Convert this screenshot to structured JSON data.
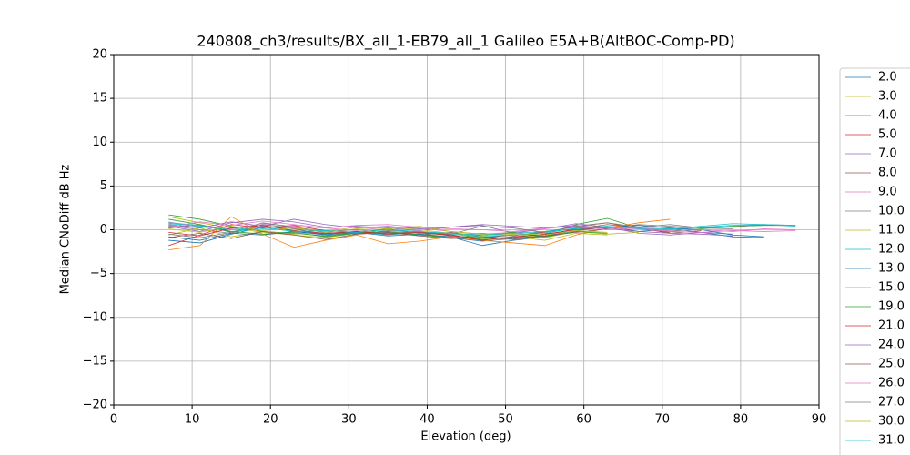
{
  "chart_data": {
    "type": "line",
    "title": "240808_ch3/results/BX_all_1-EB79_all_1 Galileo E5A+B(AltBOC-Comp-PD)",
    "xlabel": "Elevation (deg)",
    "ylabel": "Median CNoDiff dB Hz",
    "xlim": [
      0,
      90
    ],
    "xticks": [
      0,
      10,
      20,
      30,
      40,
      50,
      60,
      70,
      80,
      90
    ],
    "ylim": [
      -20,
      20
    ],
    "yticks": [
      {
        "value": -20,
        "label": "−20"
      },
      {
        "value": -15,
        "label": "−15"
      },
      {
        "value": -10,
        "label": "−10"
      },
      {
        "value": -5,
        "label": "−5"
      },
      0,
      5,
      10,
      15,
      20
    ],
    "grid": true,
    "legend": "right",
    "x": [
      7,
      11,
      15,
      19,
      23,
      27,
      31,
      35,
      39,
      43,
      47,
      51,
      55,
      59,
      63,
      67,
      71,
      75,
      79,
      83,
      87
    ],
    "series": [
      {
        "name": "2.0",
        "color": "#1f77b4",
        "values": [
          -1.2,
          -1.5,
          -0.5,
          0.3,
          -0.2,
          -0.6,
          -0.4,
          -0.3,
          -0.5,
          -0.8,
          -1.8,
          -1.2,
          -0.8,
          0.2,
          0.4,
          -0.2,
          0.1,
          -0.3,
          -0.8,
          -0.9,
          null
        ]
      },
      {
        "name": "3.0",
        "color": "#bcbd22",
        "values": [
          1.5,
          0.8,
          0.2,
          -0.3,
          -0.6,
          -0.9,
          -0.4,
          -0.2,
          -0.5,
          -0.9,
          -1.0,
          -0.8,
          -1.2,
          -0.4,
          -0.6,
          null,
          null,
          null,
          null,
          null,
          null
        ]
      },
      {
        "name": "4.0",
        "color": "#2ca02c",
        "values": [
          1.7,
          1.2,
          0.4,
          -0.2,
          -0.4,
          -0.7,
          -0.3,
          0.1,
          -0.4,
          -0.6,
          -1.1,
          -0.9,
          -0.5,
          0.6,
          1.3,
          0.2,
          -0.2,
          0.1,
          0.4,
          0.5,
          0.5
        ]
      },
      {
        "name": "5.0",
        "color": "#d62728",
        "values": [
          -1.8,
          -0.6,
          0.6,
          0.2,
          0.5,
          -0.1,
          -0.3,
          -0.5,
          -0.2,
          -0.7,
          -0.9,
          -0.6,
          -0.3,
          0.4,
          0.8,
          0.1,
          -0.3,
          null,
          null,
          null,
          null
        ]
      },
      {
        "name": "7.0",
        "color": "#9467bd",
        "values": [
          0.4,
          -0.2,
          0.8,
          1.2,
          0.9,
          0.3,
          0.4,
          0.2,
          -0.1,
          0.3,
          0.5,
          -0.4,
          0.1,
          0.7,
          0.3,
          -0.4,
          -0.6,
          -0.3,
          -0.5,
          null,
          null
        ]
      },
      {
        "name": "8.0",
        "color": "#8c564b",
        "values": [
          0.2,
          0.6,
          -0.3,
          0.4,
          0.1,
          -0.5,
          -0.2,
          -0.4,
          -0.6,
          -0.3,
          -0.8,
          -1.0,
          -0.6,
          0.1,
          0.6,
          0.2,
          -0.4,
          -0.1,
          null,
          null,
          null
        ]
      },
      {
        "name": "9.0",
        "color": "#e377c2",
        "values": [
          0.9,
          0.3,
          0.1,
          0.7,
          0.4,
          0.2,
          -0.1,
          0.3,
          0.2,
          -0.2,
          -0.5,
          -0.3,
          0.1,
          0.5,
          0.2,
          0.1,
          -0.2,
          -0.3,
          -0.1,
          -0.2,
          -0.1
        ]
      },
      {
        "name": "10.0",
        "color": "#7f7f7f",
        "values": [
          0.5,
          0.0,
          -0.4,
          0.6,
          0.2,
          -0.3,
          -0.5,
          -0.1,
          -0.3,
          -0.6,
          -0.4,
          -0.7,
          -0.2,
          0.3,
          0.2,
          0.6,
          0.4,
          0.2,
          0.3,
          0.6,
          0.5
        ]
      },
      {
        "name": "11.0",
        "color": "#bcbd22",
        "values": [
          -0.6,
          0.2,
          -0.8,
          -0.2,
          -0.5,
          -0.3,
          0.1,
          0.3,
          0.0,
          -0.4,
          -0.7,
          -0.5,
          -0.9,
          -0.2,
          -0.5,
          -0.3,
          null,
          null,
          null,
          null,
          null
        ]
      },
      {
        "name": "12.0",
        "color": "#17becf",
        "values": [
          0.8,
          0.5,
          -0.2,
          0.1,
          -0.1,
          -0.4,
          -0.2,
          -0.6,
          -0.3,
          -0.5,
          -0.8,
          -0.6,
          -0.4,
          0.2,
          0.4,
          0.1,
          0.0,
          0.3,
          0.5,
          0.6,
          0.4
        ]
      },
      {
        "name": "13.0",
        "color": "#1f77b4",
        "values": [
          -0.8,
          -1.2,
          -0.4,
          -0.6,
          -0.2,
          -0.5,
          -0.3,
          -0.7,
          -0.5,
          -0.9,
          -1.3,
          -1.0,
          -0.7,
          -0.1,
          0.3,
          0.5,
          0.2,
          0.0,
          -0.6,
          -0.8,
          null
        ]
      },
      {
        "name": "15.0",
        "color": "#ff7f0e",
        "values": [
          -2.3,
          -1.8,
          1.5,
          -0.5,
          -2.0,
          -1.2,
          -0.6,
          -1.6,
          -1.3,
          -0.8,
          -1.2,
          -1.5,
          -1.8,
          -0.6,
          0.2,
          0.8,
          1.2,
          null,
          null,
          null,
          null
        ]
      },
      {
        "name": "19.0",
        "color": "#2ca02c",
        "values": [
          1.2,
          0.6,
          -0.2,
          -0.5,
          -0.3,
          -0.8,
          -0.4,
          -0.2,
          -0.6,
          -0.9,
          -0.6,
          -0.3,
          -0.8,
          -0.2,
          -0.4,
          null,
          null,
          null,
          null,
          null,
          null
        ]
      },
      {
        "name": "21.0",
        "color": "#d62728",
        "values": [
          -0.3,
          -0.7,
          0.2,
          0.5,
          -0.1,
          -0.4,
          -0.2,
          -0.5,
          -0.3,
          -0.6,
          -1.2,
          -0.8,
          -0.5,
          0.0,
          0.3,
          null,
          null,
          null,
          null,
          null,
          null
        ]
      },
      {
        "name": "24.0",
        "color": "#9467bd",
        "values": [
          0.6,
          0.2,
          0.9,
          0.4,
          1.2,
          0.6,
          0.2,
          0.4,
          0.1,
          0.3,
          0.6,
          0.4,
          0.2,
          0.5,
          0.1,
          -0.2,
          -0.4,
          -0.5,
          -0.7,
          null,
          null
        ]
      },
      {
        "name": "25.0",
        "color": "#8c564b",
        "values": [
          -0.9,
          -0.4,
          -1.0,
          -0.2,
          -0.6,
          -1.1,
          -0.5,
          -0.3,
          -0.7,
          -1.0,
          -0.9,
          -1.1,
          -0.7,
          -0.3,
          0.1,
          null,
          null,
          null,
          null,
          null,
          null
        ]
      },
      {
        "name": "26.0",
        "color": "#e377c2",
        "values": [
          0.3,
          0.9,
          0.5,
          1.0,
          0.6,
          0.2,
          0.5,
          0.6,
          0.3,
          0.1,
          0.0,
          -0.2,
          0.2,
          0.4,
          0.0,
          0.2,
          -0.1,
          0.0,
          -0.2,
          0.1,
          0.0
        ]
      },
      {
        "name": "27.0",
        "color": "#7f7f7f",
        "values": [
          -0.5,
          -0.9,
          -0.3,
          0.8,
          0.3,
          -0.2,
          0.0,
          -0.4,
          -0.2,
          -0.5,
          0.4,
          0.2,
          -0.3,
          0.4,
          0.8,
          0.3,
          0.6,
          0.2,
          0.1,
          null,
          null
        ]
      },
      {
        "name": "30.0",
        "color": "#bcbd22",
        "values": [
          0.1,
          -0.3,
          0.4,
          -0.1,
          0.2,
          -0.2,
          0.3,
          0.1,
          0.4,
          -0.2,
          -0.5,
          -0.4,
          -0.6,
          -0.1,
          -0.3,
          null,
          null,
          null,
          null,
          null,
          null
        ]
      },
      {
        "name": "31.0",
        "color": "#17becf",
        "values": [
          0.7,
          0.4,
          0.0,
          0.3,
          -0.2,
          -0.1,
          -0.3,
          0.0,
          -0.2,
          -0.4,
          -0.6,
          -0.4,
          -0.2,
          0.1,
          0.3,
          0.2,
          0.1,
          0.4,
          0.7,
          0.6,
          0.5
        ]
      }
    ]
  }
}
